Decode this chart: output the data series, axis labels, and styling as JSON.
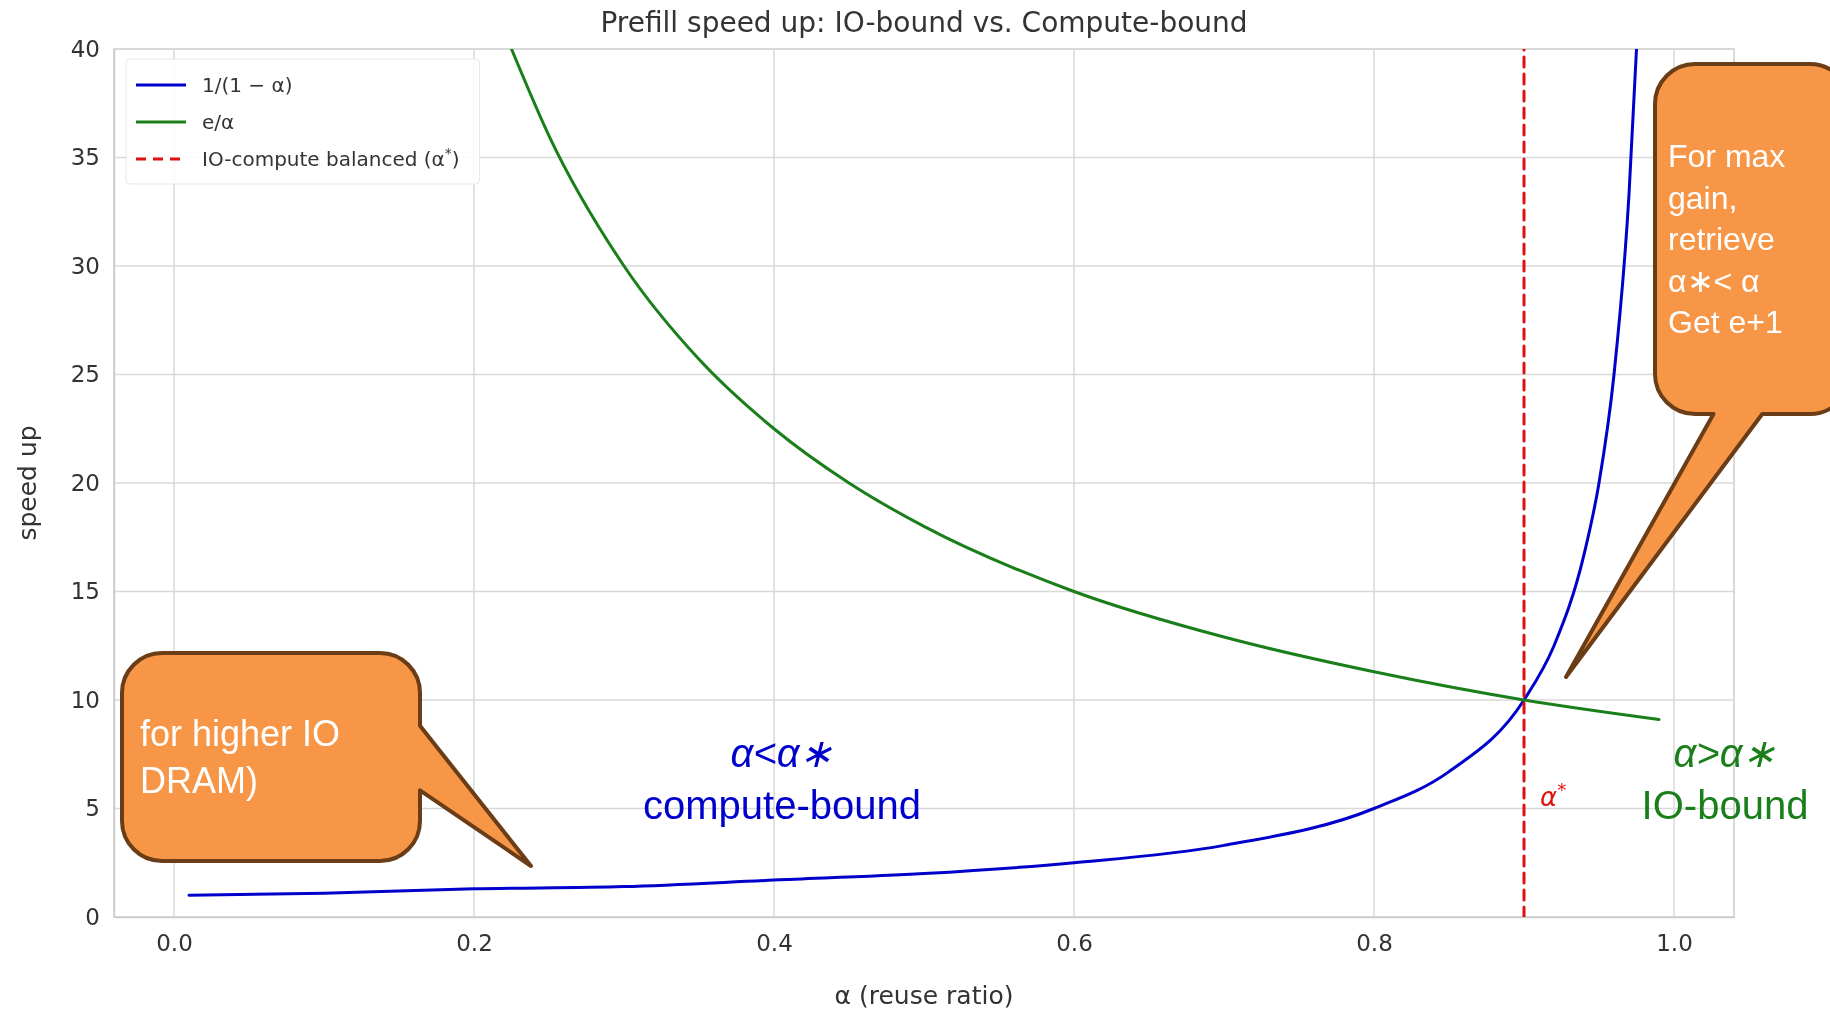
{
  "chart_data": {
    "type": "line",
    "title": "Prefill speed up: IO-bound vs. Compute-bound",
    "xlabel": "α (reuse ratio)",
    "ylabel": "speed up",
    "xlim": [
      -0.04,
      1.04
    ],
    "xticks": [
      {
        "value": 0,
        "label": "0.0"
      },
      {
        "value": 0.2,
        "label": "0.2"
      },
      {
        "value": 0.4,
        "label": "0.4"
      },
      {
        "value": 0.6,
        "label": "0.6"
      },
      {
        "value": 0.8,
        "label": "0.8"
      },
      {
        "value": 1,
        "label": "1.0"
      }
    ],
    "ylim": [
      0,
      40
    ],
    "yticks": [
      0,
      5,
      10,
      15,
      20,
      25,
      30,
      35,
      40
    ],
    "grid": true,
    "legend": "top left",
    "line_style": "solid",
    "marker": "none",
    "series": [
      {
        "name": "1/(1 − α)",
        "color": "#0000cc",
        "x": [
          0.01,
          0.1,
          0.2,
          0.3,
          0.4,
          0.5,
          0.6,
          0.7,
          0.8,
          0.85,
          0.9,
          0.92,
          0.94,
          0.95,
          0.96,
          0.97,
          0.975
        ],
        "values": [
          1.0,
          1.1,
          1.3,
          1.4,
          1.7,
          2.0,
          2.5,
          3.3,
          5.0,
          6.7,
          10.0,
          12.5,
          16.7,
          20.0,
          25.0,
          33.3,
          40.0
        ]
      },
      {
        "name": "e/α",
        "color": "#1a7f1a",
        "x": [
          0.225,
          0.25,
          0.3,
          0.35,
          0.4,
          0.45,
          0.5,
          0.6,
          0.7,
          0.8,
          0.9,
          0.99
        ],
        "values": [
          40.0,
          36.0,
          30.0,
          25.7,
          22.5,
          20.0,
          18.0,
          15.0,
          12.9,
          11.3,
          10.0,
          9.1
        ]
      },
      {
        "name": "IO-compute balanced (α$^{*}$)",
        "color": "#dd1111",
        "line_style": "dashed",
        "x": [
          0.9,
          0.9
        ],
        "values": [
          0,
          40
        ]
      }
    ],
    "annotations": [
      "α<α∗\ncompute-bound",
      "α>α∗\nIO-bound",
      "α$^{*}$",
      "for higher IO\nDRAM)",
      "For max\ngain,\nretrieve\nα∗< α\nGet e+1"
    ]
  }
}
